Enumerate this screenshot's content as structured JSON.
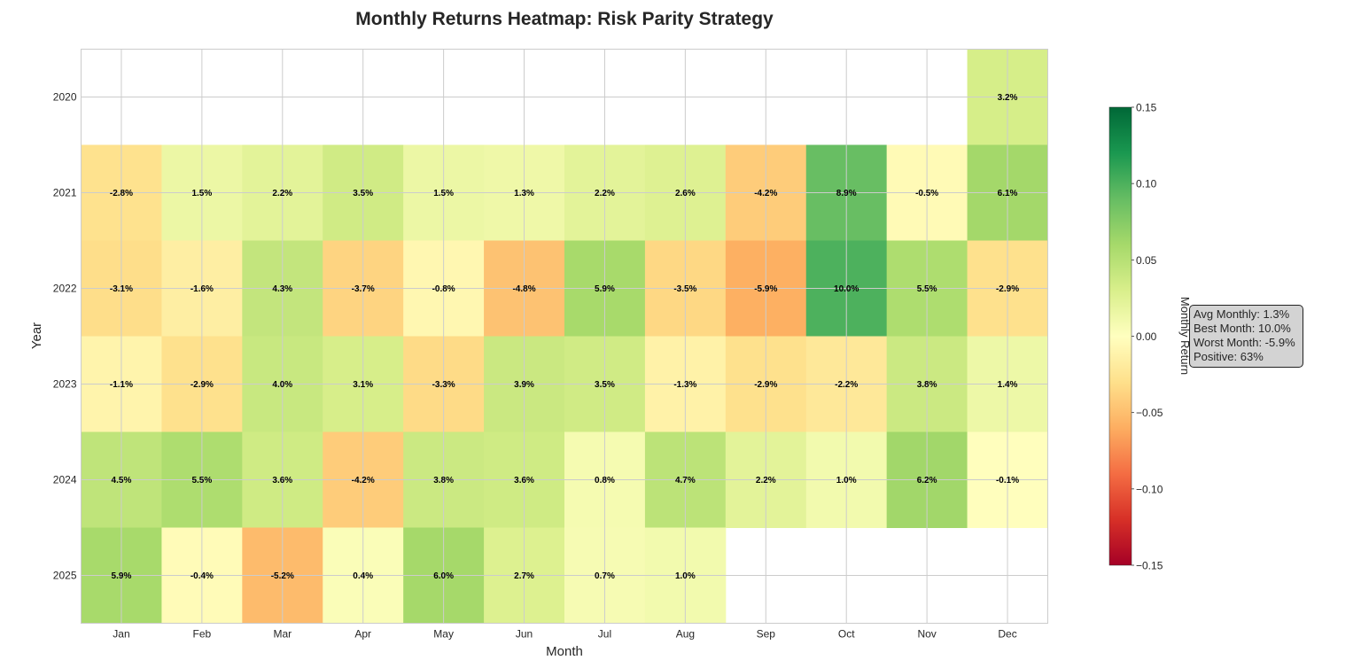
{
  "chart_data": {
    "type": "heatmap",
    "title": "Monthly Returns Heatmap: Risk Parity Strategy",
    "xlabel": "Month",
    "ylabel": "Year",
    "months": [
      "Jan",
      "Feb",
      "Mar",
      "Apr",
      "May",
      "Jun",
      "Jul",
      "Aug",
      "Sep",
      "Oct",
      "Nov",
      "Dec"
    ],
    "years": [
      "2020",
      "2021",
      "2022",
      "2023",
      "2024",
      "2025"
    ],
    "values": [
      [
        null,
        null,
        null,
        null,
        null,
        null,
        null,
        null,
        null,
        null,
        null,
        0.032
      ],
      [
        -0.028,
        0.015,
        0.022,
        0.035,
        0.015,
        0.013,
        0.022,
        0.026,
        -0.042,
        0.089,
        -0.005,
        0.061
      ],
      [
        -0.031,
        -0.016,
        0.043,
        -0.037,
        -0.008,
        -0.048,
        0.059,
        -0.035,
        -0.059,
        0.1,
        0.055,
        -0.029
      ],
      [
        -0.011,
        -0.029,
        0.04,
        0.031,
        -0.033,
        0.039,
        0.035,
        -0.013,
        -0.029,
        -0.022,
        0.038,
        0.014
      ],
      [
        0.045,
        0.055,
        0.036,
        -0.042,
        0.038,
        0.036,
        0.008,
        0.047,
        0.022,
        0.01,
        0.062,
        -0.001
      ],
      [
        0.059,
        -0.004,
        -0.052,
        0.004,
        0.06,
        0.027,
        0.007,
        0.01,
        null,
        null,
        null,
        null
      ]
    ],
    "cell_labels": [
      [
        null,
        null,
        null,
        null,
        null,
        null,
        null,
        null,
        null,
        null,
        null,
        "3.2%"
      ],
      [
        "-2.8%",
        "1.5%",
        "2.2%",
        "3.5%",
        "1.5%",
        "1.3%",
        "2.2%",
        "2.6%",
        "-4.2%",
        "8.9%",
        "-0.5%",
        "6.1%"
      ],
      [
        "-3.1%",
        "-1.6%",
        "4.3%",
        "-3.7%",
        "-0.8%",
        "-4.8%",
        "5.9%",
        "-3.5%",
        "-5.9%",
        "10.0%",
        "5.5%",
        "-2.9%"
      ],
      [
        "-1.1%",
        "-2.9%",
        "4.0%",
        "3.1%",
        "-3.3%",
        "3.9%",
        "3.5%",
        "-1.3%",
        "-2.9%",
        "-2.2%",
        "3.8%",
        "1.4%"
      ],
      [
        "4.5%",
        "5.5%",
        "3.6%",
        "-4.2%",
        "3.8%",
        "3.6%",
        "0.8%",
        "4.7%",
        "2.2%",
        "1.0%",
        "6.2%",
        "-0.1%"
      ],
      [
        "5.9%",
        "-0.4%",
        "-5.2%",
        "0.4%",
        "6.0%",
        "2.7%",
        "0.7%",
        "1.0%",
        null,
        null,
        null,
        null
      ]
    ],
    "colormap": "RdYlGn",
    "vmin": -0.15,
    "vmax": 0.15,
    "colorbar": {
      "label": "Monthly Return",
      "ticks": [
        0.15,
        0.1,
        0.05,
        0.0,
        -0.05,
        -0.1,
        -0.15
      ],
      "tick_labels": [
        "0.15",
        "0.10",
        "0.05",
        "0.00",
        "−0.05",
        "−0.10",
        "−0.15"
      ]
    },
    "grid": true,
    "stats": [
      "Avg Monthly: 1.3%",
      "Best Month: 10.0%",
      "Worst Month: -5.9%",
      "Positive: 63%"
    ]
  }
}
